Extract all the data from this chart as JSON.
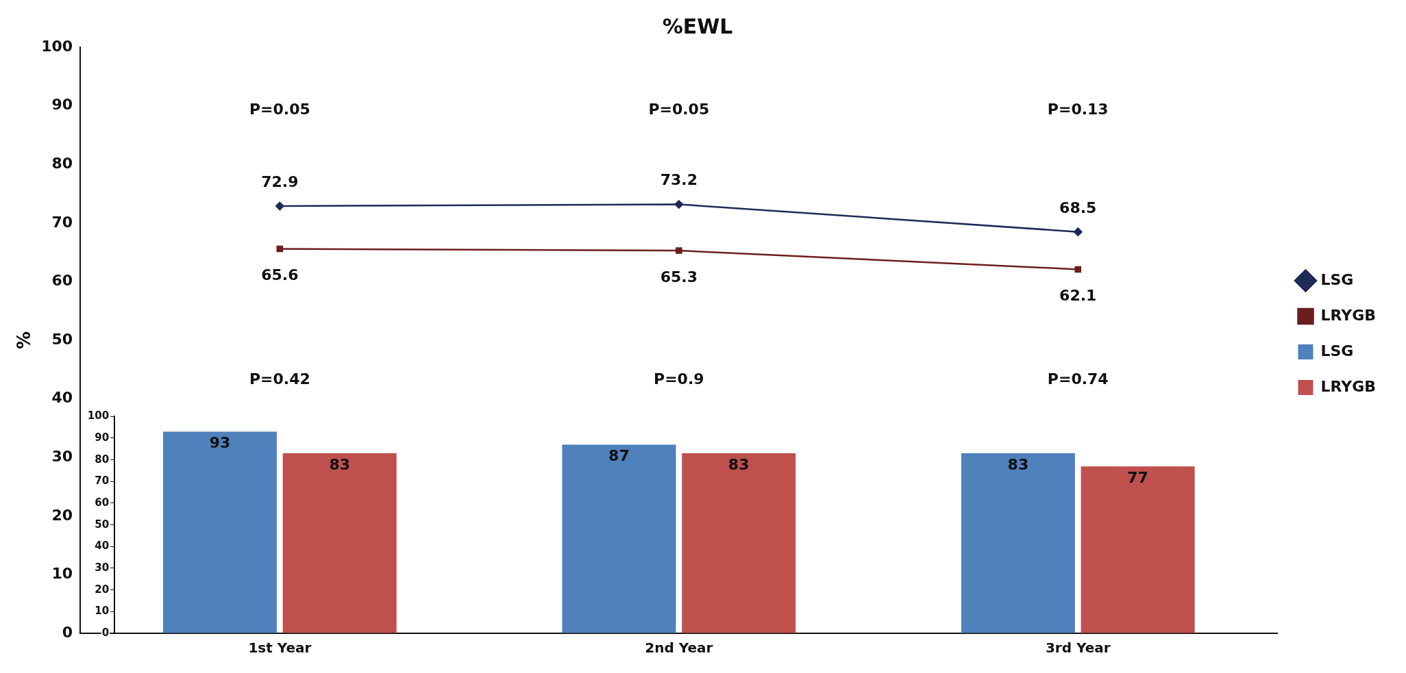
{
  "chart_data": {
    "type": "bar",
    "title": "%EWL",
    "ylabel": "%",
    "categories": [
      "1st Year",
      "2nd Year",
      "3rd Year"
    ],
    "series": [
      {
        "name": "LSG",
        "type": "line",
        "color": "#1f2a55",
        "values": [
          72.9,
          73.2,
          68.5
        ],
        "marker": "diamond"
      },
      {
        "name": "LRYGB",
        "type": "line",
        "color": "#6b1e1e",
        "values": [
          65.6,
          65.3,
          62.1
        ],
        "marker": "square"
      },
      {
        "name": "LSG",
        "axis": "y2",
        "color": "#4f81bd",
        "values": [
          93,
          87,
          83
        ]
      },
      {
        "name": "LRYGB",
        "axis": "y2",
        "color": "#c0504d",
        "values": [
          83,
          83,
          77
        ]
      }
    ],
    "ylim": [
      0,
      100
    ],
    "yticks": [
      0,
      10,
      20,
      30,
      40,
      50,
      60,
      70,
      80,
      90,
      100
    ],
    "y2lim": [
      0,
      100
    ],
    "y2ticks": [
      0,
      10,
      20,
      30,
      40,
      50,
      60,
      70,
      80,
      90,
      100
    ],
    "data_labels": true,
    "grid": false,
    "legend": "right",
    "line_style": "solid",
    "annotations": [
      "P=0.05",
      "P=0.05",
      "P=0.13",
      "P=0.42",
      "P=0.9",
      "P=0.74"
    ]
  }
}
